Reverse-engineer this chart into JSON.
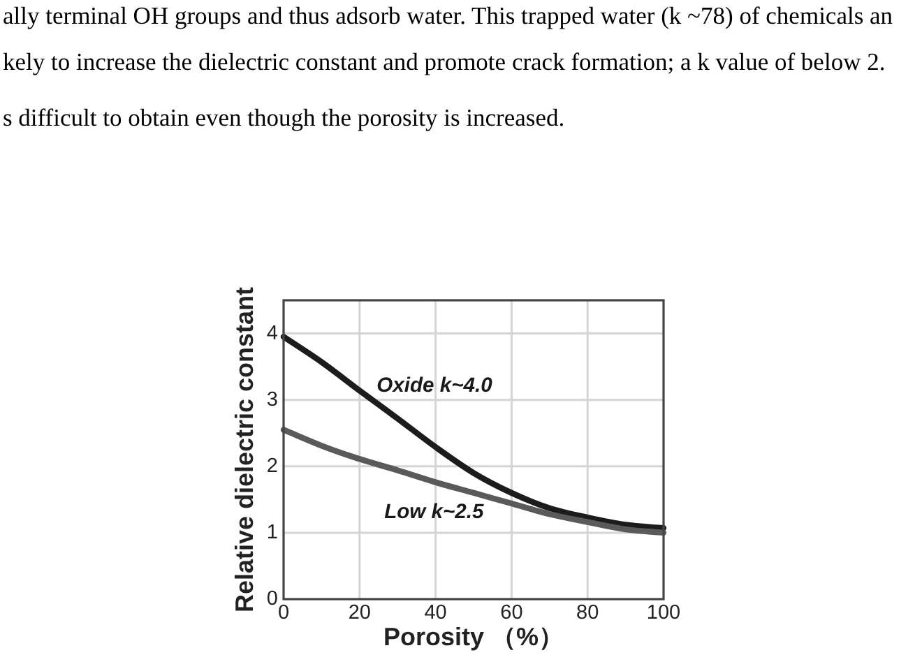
{
  "chart_data": {
    "type": "line",
    "xlabel": "Porosity （%）",
    "ylabel": "Relative dielectric constant",
    "x": [
      0,
      10,
      20,
      30,
      40,
      50,
      60,
      70,
      80,
      90,
      100
    ],
    "series": [
      {
        "name": "Oxide k~4.0",
        "color": "#1c1c1c",
        "values": [
          3.95,
          3.57,
          3.14,
          2.72,
          2.29,
          1.9,
          1.6,
          1.37,
          1.23,
          1.12,
          1.07
        ]
      },
      {
        "name": "Low k~2.5",
        "color": "#5a5a5a",
        "values": [
          2.55,
          2.31,
          2.11,
          1.94,
          1.76,
          1.6,
          1.44,
          1.28,
          1.16,
          1.05,
          1.0
        ]
      }
    ],
    "xlim": [
      0,
      100
    ],
    "ylim": [
      0,
      4.5
    ],
    "xticks": [
      0,
      20,
      40,
      60,
      80,
      100
    ],
    "yticks": [
      0,
      1,
      2,
      3,
      4
    ],
    "grid": true,
    "line_style": "solid",
    "annotations": [
      "ally terminal OH groups and thus adsorb water. This trapped water (k ~78) of chemicals an",
      "kely to increase the dielectric constant and promote crack formation; a k value of below 2.",
      "s difficult to obtain even though the porosity is increased."
    ]
  }
}
